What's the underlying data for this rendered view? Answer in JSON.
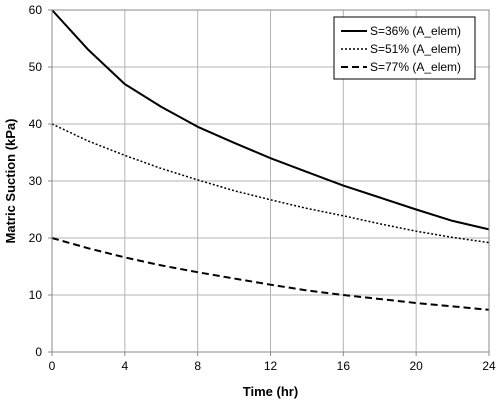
{
  "chart_data": {
    "type": "line",
    "xlabel": "Time (hr)",
    "ylabel": "Matric Suction (kPa)",
    "xlim": [
      0,
      24
    ],
    "ylim": [
      0,
      60
    ],
    "xticks": [
      "0",
      "4",
      "8",
      "12",
      "16",
      "20",
      "24"
    ],
    "yticks": [
      "0",
      "10",
      "20",
      "30",
      "40",
      "50",
      "60"
    ],
    "grid": true,
    "legend_position": "top-right",
    "series": [
      {
        "name": "S=36% (A_elem)",
        "line_style": "solid",
        "color": "#000000",
        "x": [
          0,
          1,
          2,
          3,
          4,
          6,
          8,
          10,
          12,
          14,
          16,
          18,
          20,
          22,
          24
        ],
        "y": [
          60,
          56.5,
          53,
          50,
          47,
          43,
          39.5,
          36.7,
          34,
          31.6,
          29.2,
          27.1,
          25,
          23,
          21.5
        ]
      },
      {
        "name": "S=51% (A_elem)",
        "line_style": "dotted",
        "color": "#000000",
        "x": [
          0,
          2,
          4,
          6,
          8,
          10,
          12,
          14,
          16,
          18,
          20,
          22,
          24
        ],
        "y": [
          40,
          37,
          34.5,
          32.2,
          30.2,
          28.3,
          26.7,
          25.2,
          23.9,
          22.5,
          21.2,
          20.1,
          19.2
        ]
      },
      {
        "name": "S=77% (A_elem)",
        "line_style": "dashed",
        "color": "#000000",
        "x": [
          0,
          2,
          4,
          6,
          8,
          10,
          12,
          14,
          16,
          18,
          20,
          22,
          24
        ],
        "y": [
          20,
          18.2,
          16.6,
          15.2,
          14,
          12.9,
          11.8,
          10.8,
          10,
          9.3,
          8.6,
          8,
          7.4
        ]
      }
    ]
  }
}
